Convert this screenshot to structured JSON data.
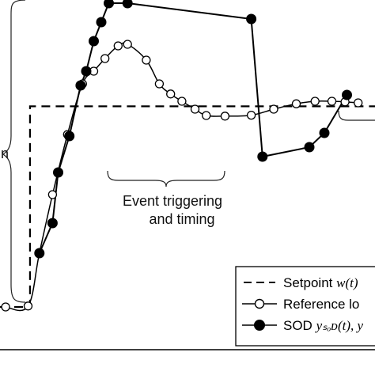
{
  "chart_data": {
    "type": "line",
    "title": "",
    "xlabel": "",
    "ylabel": "",
    "xlim": [
      0,
      100
    ],
    "ylim": [
      0,
      100
    ],
    "grid": false,
    "legend_position": "bottom-right",
    "annotations": {
      "left_brace_label": "n",
      "event_label_line1": "Event triggering",
      "event_label_line2": "and timing"
    },
    "legend": [
      {
        "text": "Setpoint ",
        "math": "w(t)",
        "style": "dashed"
      },
      {
        "text": "Reference lo",
        "math": "",
        "style": "open-circle"
      },
      {
        "text": "SOD ",
        "math": "yₛₒᴅ(t), y",
        "style": "filled-circle"
      }
    ],
    "series": [
      {
        "name": "Setpoint w(t)",
        "style": "dashed",
        "x": [
          0,
          8,
          8,
          100
        ],
        "y": [
          3.0,
          3.0,
          66.4,
          66.4
        ]
      },
      {
        "name": "Reference lo",
        "style": "open-circle",
        "x": [
          1.5,
          7.5,
          10.5,
          14.0,
          18.0,
          22.0,
          25.0,
          28.0,
          31.5,
          34.0,
          39.0,
          42.5,
          45.5,
          48.5,
          52.0,
          55.0,
          60.0,
          67.0,
          73.0,
          79.0,
          84.0,
          88.5,
          92.0,
          95.5
        ],
        "y": [
          3.0,
          3.3,
          20.0,
          38.5,
          57.5,
          73.5,
          77.5,
          81.5,
          85.5,
          86.0,
          81.0,
          73.5,
          70.3,
          68.0,
          65.5,
          63.5,
          63.3,
          63.6,
          65.5,
          67.2,
          68.0,
          68.0,
          67.8,
          67.5
        ]
      },
      {
        "name": "SOD",
        "style": "filled-circle",
        "x": [
          10.5,
          14.0,
          15.5,
          18.5,
          21.5,
          23.0,
          25.0,
          27.0,
          29.0,
          34.0,
          67.0,
          70.0,
          82.5,
          86.5,
          92.5
        ],
        "y": [
          20.0,
          29.5,
          45.5,
          57.0,
          73.0,
          77.5,
          87.0,
          93.0,
          99.0,
          99.0,
          94.0,
          50.5,
          53.5,
          58.0,
          70.0
        ]
      }
    ]
  }
}
